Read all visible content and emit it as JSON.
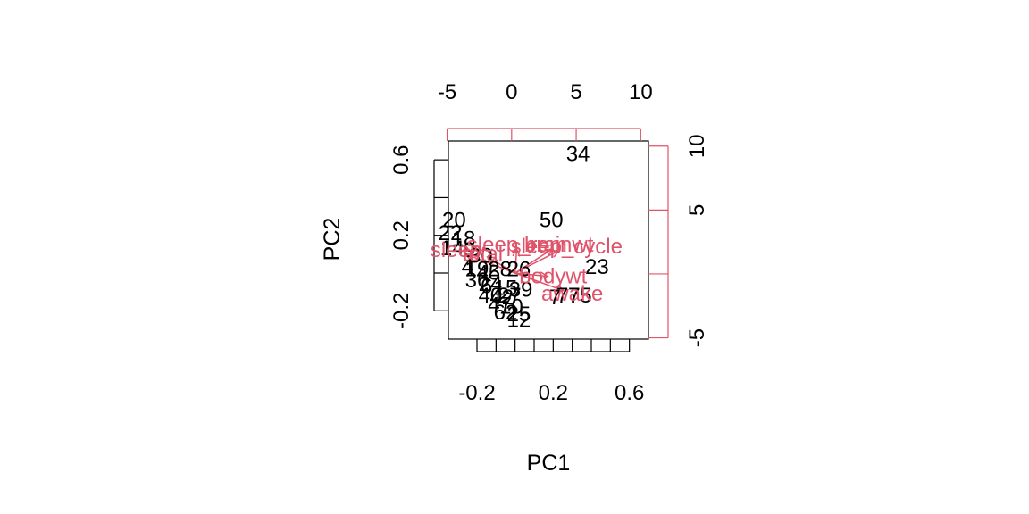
{
  "chart_data": {
    "type": "scatter",
    "title": "",
    "xlabel": "PC1",
    "ylabel": "PC2",
    "xlim": [
      -0.35,
      0.7
    ],
    "ylim": [
      -0.35,
      0.7
    ],
    "x_ticks": [
      "-0.2",
      "0.2",
      "0.6"
    ],
    "y_ticks": [
      "-0.2",
      "0.2",
      "0.6"
    ],
    "top_axis": {
      "lim": [
        -4.9,
        10.6
      ],
      "ticks": [
        "-5",
        "0",
        "5",
        "10"
      ]
    },
    "right_axis": {
      "lim": [
        -5.1,
        10.4
      ],
      "ticks": [
        "-5",
        "5",
        "10"
      ]
    },
    "colors": {
      "points": "#000000",
      "loadings": "#DF536B",
      "axes": "#000000"
    },
    "points": [
      {
        "label": "34",
        "x": 0.33,
        "y": 0.63
      },
      {
        "label": "20",
        "x": -0.32,
        "y": 0.28
      },
      {
        "label": "50",
        "x": 0.19,
        "y": 0.28
      },
      {
        "label": "22",
        "x": -0.34,
        "y": 0.21
      },
      {
        "label": "18",
        "x": -0.27,
        "y": 0.18
      },
      {
        "label": "14",
        "x": -0.33,
        "y": 0.13
      },
      {
        "label": "9",
        "x": -0.24,
        "y": 0.12
      },
      {
        "label": "30",
        "x": -0.18,
        "y": 0.09
      },
      {
        "label": "4",
        "x": -0.25,
        "y": 0.03
      },
      {
        "label": "19",
        "x": -0.2,
        "y": 0.02
      },
      {
        "label": "45",
        "x": -0.14,
        "y": 0.0
      },
      {
        "label": "28",
        "x": -0.08,
        "y": 0.02
      },
      {
        "label": "26",
        "x": 0.02,
        "y": 0.02
      },
      {
        "label": "23",
        "x": 0.43,
        "y": 0.03
      },
      {
        "label": "36",
        "x": -0.2,
        "y": -0.04
      },
      {
        "label": "24",
        "x": -0.13,
        "y": -0.06
      },
      {
        "label": "6",
        "x": -0.15,
        "y": -0.07
      },
      {
        "label": "15",
        "x": -0.05,
        "y": -0.08
      },
      {
        "label": "39",
        "x": 0.03,
        "y": -0.09
      },
      {
        "label": "40",
        "x": -0.13,
        "y": -0.12
      },
      {
        "label": "42",
        "x": -0.07,
        "y": -0.13
      },
      {
        "label": "27",
        "x": -0.03,
        "y": -0.12
      },
      {
        "label": "7",
        "x": 0.21,
        "y": -0.13
      },
      {
        "label": "77",
        "x": 0.28,
        "y": -0.12
      },
      {
        "label": "75",
        "x": 0.34,
        "y": -0.12
      },
      {
        "label": "47",
        "x": -0.08,
        "y": -0.17
      },
      {
        "label": "10",
        "x": -0.02,
        "y": -0.18
      },
      {
        "label": "62",
        "x": -0.05,
        "y": -0.21
      },
      {
        "label": "25",
        "x": 0.02,
        "y": -0.22
      },
      {
        "label": "12",
        "x": 0.02,
        "y": -0.25
      }
    ],
    "loadings": [
      {
        "label": "sleep_cycle",
        "x": 0.27,
        "y": 0.14
      },
      {
        "label": "brainwt",
        "x": 0.23,
        "y": 0.15
      },
      {
        "label": "sleep_rem",
        "x": 0.01,
        "y": 0.15
      },
      {
        "label": "sleep",
        "x": -0.31,
        "y": 0.12
      },
      {
        "label": "total",
        "x": -0.17,
        "y": 0.1
      },
      {
        "label": "bodywt",
        "x": 0.2,
        "y": -0.02
      },
      {
        "label": "awake",
        "x": 0.3,
        "y": -0.11
      }
    ]
  }
}
